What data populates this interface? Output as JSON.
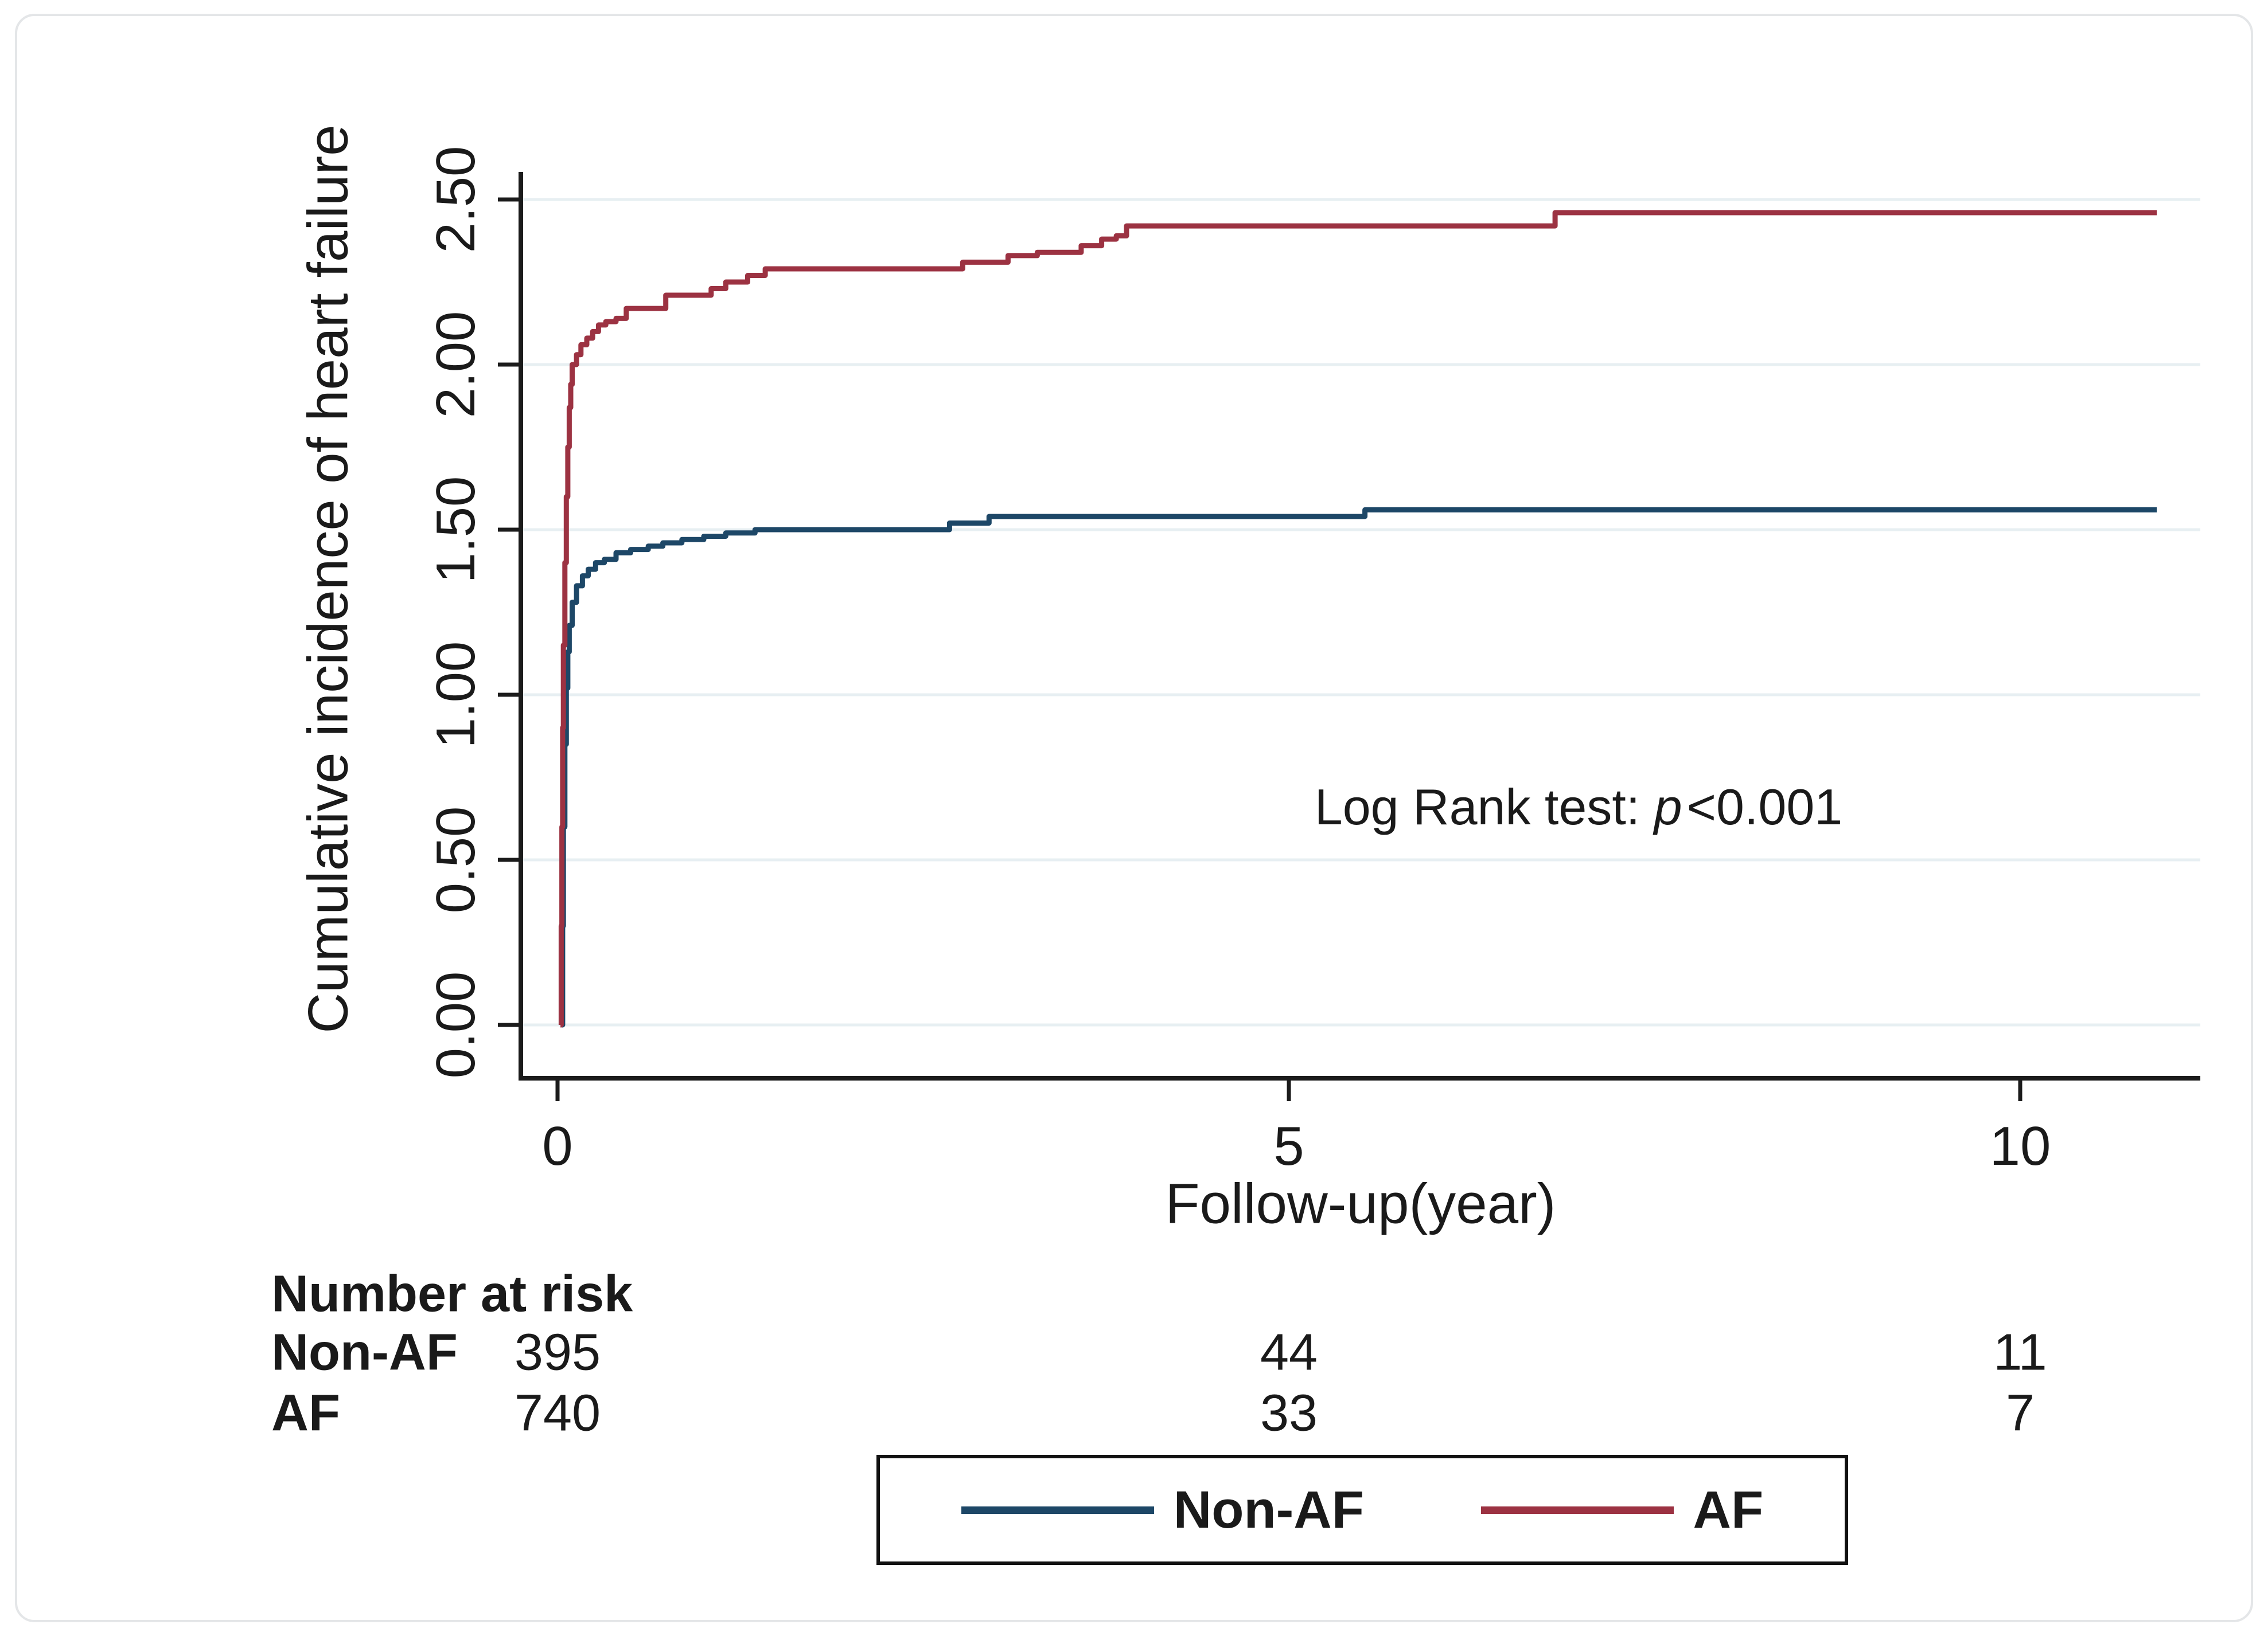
{
  "figure": {
    "y_axis_title": "Cumulative incidence of heart failure",
    "x_axis_title": "Follow-up(year)",
    "annotation": {
      "prefix": "Log Rank test:",
      "stat": "p",
      "suffix": "<0.001"
    },
    "colors": {
      "non_af_line": "#1d4767",
      "af_line": "#9c3242",
      "gridline": "#e7eff2",
      "axis": "#1b1b1b",
      "text": "#1a1a1a",
      "figure_border": "#e4e6e8"
    }
  },
  "chart_data": {
    "type": "line",
    "subtype": "step-cumulative-incidence",
    "title": "",
    "xlabel": "Follow-up(year)",
    "ylabel": "Cumulative incidence of heart failure",
    "xlim": [
      0,
      11
    ],
    "ylim": [
      0.0,
      2.5
    ],
    "grid": true,
    "legend_position": "bottom",
    "annotation_text": "Log Rank test: p<0.001",
    "x_ticks": [
      {
        "value": 0,
        "label": "0"
      },
      {
        "value": 5,
        "label": "5"
      },
      {
        "value": 10,
        "label": "10"
      }
    ],
    "y_ticks": [
      {
        "value": 0.0,
        "label": "0.00"
      },
      {
        "value": 0.5,
        "label": "0.50"
      },
      {
        "value": 1.0,
        "label": "1.00"
      },
      {
        "value": 1.5,
        "label": "1.50"
      },
      {
        "value": 2.0,
        "label": "2.00"
      },
      {
        "value": 2.5,
        "label": "2.50"
      }
    ],
    "end_time": 10.93,
    "series": [
      {
        "name": "Non-AF",
        "color": "#1d4767",
        "final_value": 1.56,
        "steps": [
          [
            0.03,
            0.0
          ],
          [
            0.035,
            0.3
          ],
          [
            0.04,
            0.6
          ],
          [
            0.05,
            0.85
          ],
          [
            0.06,
            1.02
          ],
          [
            0.07,
            1.13
          ],
          [
            0.08,
            1.21
          ],
          [
            0.1,
            1.28
          ],
          [
            0.13,
            1.33
          ],
          [
            0.17,
            1.36
          ],
          [
            0.21,
            1.38
          ],
          [
            0.26,
            1.4
          ],
          [
            0.32,
            1.41
          ],
          [
            0.4,
            1.43
          ],
          [
            0.5,
            1.44
          ],
          [
            0.62,
            1.45
          ],
          [
            0.72,
            1.46
          ],
          [
            0.85,
            1.47
          ],
          [
            1.0,
            1.48
          ],
          [
            1.15,
            1.49
          ],
          [
            1.35,
            1.5
          ],
          [
            2.68,
            1.52
          ],
          [
            2.95,
            1.54
          ],
          [
            5.52,
            1.56
          ]
        ]
      },
      {
        "name": "AF",
        "color": "#9c3242",
        "final_value": 2.46,
        "steps": [
          [
            0.02,
            0.0
          ],
          [
            0.025,
            0.3
          ],
          [
            0.03,
            0.6
          ],
          [
            0.035,
            0.9
          ],
          [
            0.04,
            1.15
          ],
          [
            0.05,
            1.4
          ],
          [
            0.06,
            1.6
          ],
          [
            0.07,
            1.75
          ],
          [
            0.08,
            1.87
          ],
          [
            0.09,
            1.94
          ],
          [
            0.1,
            2.0
          ],
          [
            0.13,
            2.03
          ],
          [
            0.16,
            2.06
          ],
          [
            0.2,
            2.08
          ],
          [
            0.24,
            2.1
          ],
          [
            0.28,
            2.12
          ],
          [
            0.33,
            2.13
          ],
          [
            0.4,
            2.14
          ],
          [
            0.47,
            2.17
          ],
          [
            0.74,
            2.21
          ],
          [
            1.05,
            2.23
          ],
          [
            1.15,
            2.25
          ],
          [
            1.3,
            2.27
          ],
          [
            1.42,
            2.29
          ],
          [
            2.77,
            2.31
          ],
          [
            3.08,
            2.33
          ],
          [
            3.28,
            2.34
          ],
          [
            3.58,
            2.36
          ],
          [
            3.72,
            2.38
          ],
          [
            3.82,
            2.39
          ],
          [
            3.89,
            2.42
          ],
          [
            6.82,
            2.46
          ]
        ]
      }
    ]
  },
  "risk_table": {
    "title": "Number at risk",
    "rows": [
      {
        "label": "Non-AF",
        "values": [
          "395",
          "44",
          "11"
        ]
      },
      {
        "label": "AF",
        "values": [
          "740",
          "33",
          "7"
        ]
      }
    ]
  },
  "legend": {
    "items": [
      {
        "label": "Non-AF",
        "color": "#1d4767"
      },
      {
        "label": "AF",
        "color": "#9c3242"
      }
    ]
  }
}
